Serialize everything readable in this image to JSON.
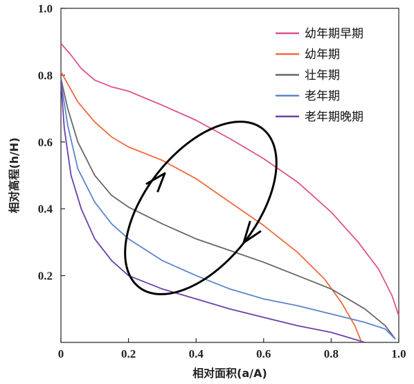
{
  "chart_data": {
    "type": "line",
    "title": "",
    "xlabel": "相对面积(a/A)",
    "ylabel": "相对高程(h/H)",
    "xlim": [
      0,
      1
    ],
    "ylim": [
      0,
      1
    ],
    "x_ticks": [
      "0",
      "0.2",
      "0.4",
      "0.6",
      "0.8",
      "1.0"
    ],
    "y_ticks": [
      "0.2",
      "0.4",
      "0.6",
      "0.8",
      "1.0"
    ],
    "grid": false,
    "legend_position": "top-right",
    "series": [
      {
        "name": "幼年期早期",
        "color": "#e0508a",
        "points": [
          [
            0,
            0.895
          ],
          [
            0.03,
            0.86
          ],
          [
            0.06,
            0.82
          ],
          [
            0.1,
            0.785
          ],
          [
            0.15,
            0.765
          ],
          [
            0.2,
            0.752
          ],
          [
            0.3,
            0.71
          ],
          [
            0.4,
            0.665
          ],
          [
            0.5,
            0.61
          ],
          [
            0.6,
            0.55
          ],
          [
            0.7,
            0.48
          ],
          [
            0.8,
            0.39
          ],
          [
            0.88,
            0.3
          ],
          [
            0.94,
            0.22
          ],
          [
            0.98,
            0.14
          ],
          [
            1.0,
            0.08
          ]
        ]
      },
      {
        "name": "幼年期",
        "color": "#f06a3a",
        "points": [
          [
            0,
            0.81
          ],
          [
            0.05,
            0.72
          ],
          [
            0.1,
            0.66
          ],
          [
            0.15,
            0.615
          ],
          [
            0.2,
            0.585
          ],
          [
            0.3,
            0.545
          ],
          [
            0.4,
            0.49
          ],
          [
            0.5,
            0.42
          ],
          [
            0.6,
            0.35
          ],
          [
            0.7,
            0.27
          ],
          [
            0.78,
            0.19
          ],
          [
            0.83,
            0.12
          ],
          [
            0.87,
            0.05
          ],
          [
            0.89,
            0.0
          ]
        ]
      },
      {
        "name": "壮年期",
        "color": "#666666",
        "points": [
          [
            0,
            0.79
          ],
          [
            0.02,
            0.7
          ],
          [
            0.05,
            0.6
          ],
          [
            0.1,
            0.5
          ],
          [
            0.15,
            0.44
          ],
          [
            0.2,
            0.405
          ],
          [
            0.3,
            0.355
          ],
          [
            0.4,
            0.31
          ],
          [
            0.5,
            0.275
          ],
          [
            0.6,
            0.24
          ],
          [
            0.7,
            0.2
          ],
          [
            0.8,
            0.16
          ],
          [
            0.9,
            0.1
          ],
          [
            0.96,
            0.05
          ],
          [
            0.99,
            0.01
          ]
        ]
      },
      {
        "name": "老年期",
        "color": "#5b84cc",
        "points": [
          [
            0,
            0.78
          ],
          [
            0.02,
            0.65
          ],
          [
            0.05,
            0.52
          ],
          [
            0.1,
            0.42
          ],
          [
            0.15,
            0.355
          ],
          [
            0.2,
            0.31
          ],
          [
            0.3,
            0.245
          ],
          [
            0.4,
            0.2
          ],
          [
            0.5,
            0.16
          ],
          [
            0.6,
            0.13
          ],
          [
            0.7,
            0.11
          ],
          [
            0.8,
            0.085
          ],
          [
            0.9,
            0.06
          ],
          [
            0.96,
            0.04
          ],
          [
            0.99,
            0.01
          ]
        ]
      },
      {
        "name": "老年期晚期",
        "color": "#6a40a8",
        "points": [
          [
            0,
            0.78
          ],
          [
            0.01,
            0.64
          ],
          [
            0.03,
            0.5
          ],
          [
            0.06,
            0.4
          ],
          [
            0.1,
            0.31
          ],
          [
            0.15,
            0.245
          ],
          [
            0.2,
            0.2
          ],
          [
            0.3,
            0.16
          ],
          [
            0.4,
            0.13
          ],
          [
            0.5,
            0.1
          ],
          [
            0.6,
            0.075
          ],
          [
            0.7,
            0.05
          ],
          [
            0.8,
            0.03
          ],
          [
            0.9,
            0.0
          ]
        ]
      }
    ],
    "annotation": {
      "shape": "ellipse",
      "color": "#000000",
      "arrows": "counter-clockwise"
    }
  }
}
